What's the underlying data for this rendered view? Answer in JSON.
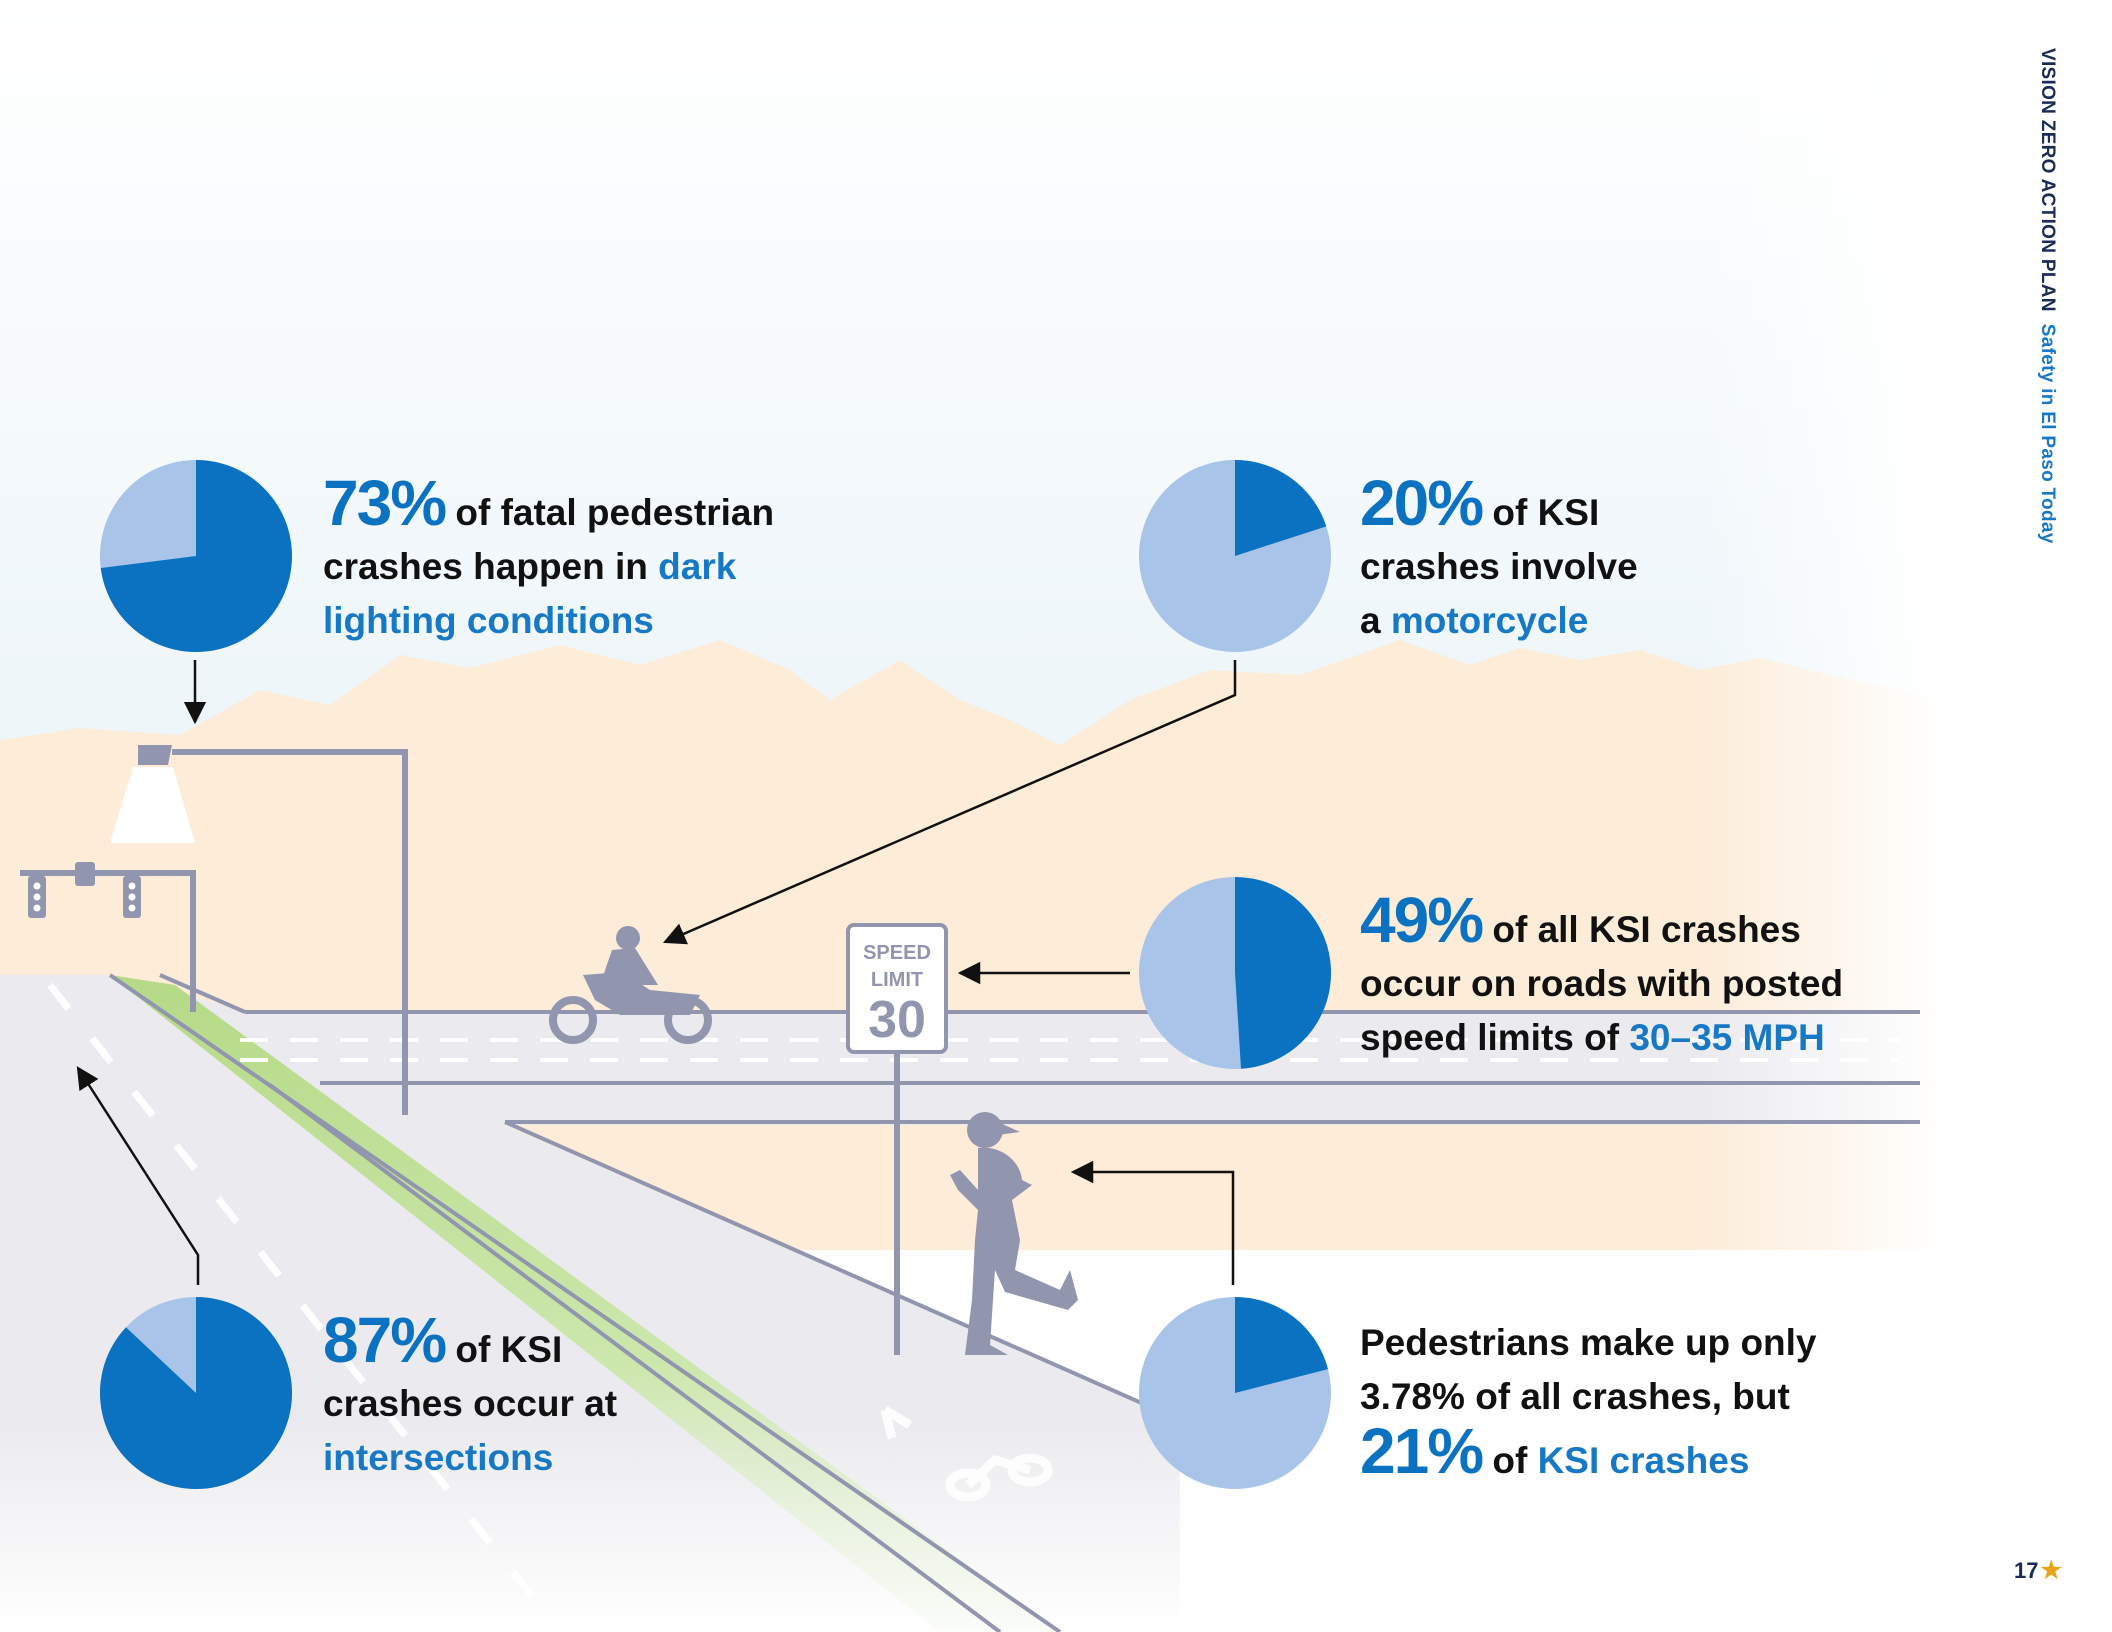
{
  "header": {
    "doc_title": "VISION ZERO ACTION PLAN",
    "section_title": "Safety in El Paso Today"
  },
  "footer": {
    "page_number": "17"
  },
  "sign": {
    "speed": "SPEED",
    "limit": "LIMIT",
    "value": "30"
  },
  "colors": {
    "pie_primary": "#0a72c0",
    "pie_secondary": "#a8c4e8",
    "highlight_text": "#1778c6",
    "body_text": "#111111",
    "illustration_gray": "#8e93a9",
    "bike_lane": "#c7e3a0",
    "mountains": "#fcecd8"
  },
  "stats": {
    "dark": {
      "percent": "73%",
      "fraction": 0.73,
      "l1": "of fatal pedestrian",
      "l2": "crashes happen in ",
      "l2_hl": "dark",
      "l3_hl": "lighting conditions"
    },
    "moto": {
      "percent": "20%",
      "fraction": 0.2,
      "l1": "of KSI",
      "l2": "crashes involve",
      "l3": "a ",
      "l3_hl": "motorcycle"
    },
    "speed": {
      "percent": "49%",
      "fraction": 0.49,
      "l1": "of all KSI crashes",
      "l2": "occur on roads with posted",
      "l3": "speed limits of ",
      "l3_hl": "30–35 MPH"
    },
    "inter": {
      "percent": "87%",
      "fraction": 0.87,
      "l1": "of KSI",
      "l2": "crashes occur at",
      "l3_hl": "intersections"
    },
    "ped": {
      "l1": "Pedestrians make up only",
      "l2": "3.78% of all crashes, but",
      "percent": "21%",
      "fraction": 0.21,
      "l3": "of ",
      "l3_hl": "KSI crashes"
    }
  }
}
